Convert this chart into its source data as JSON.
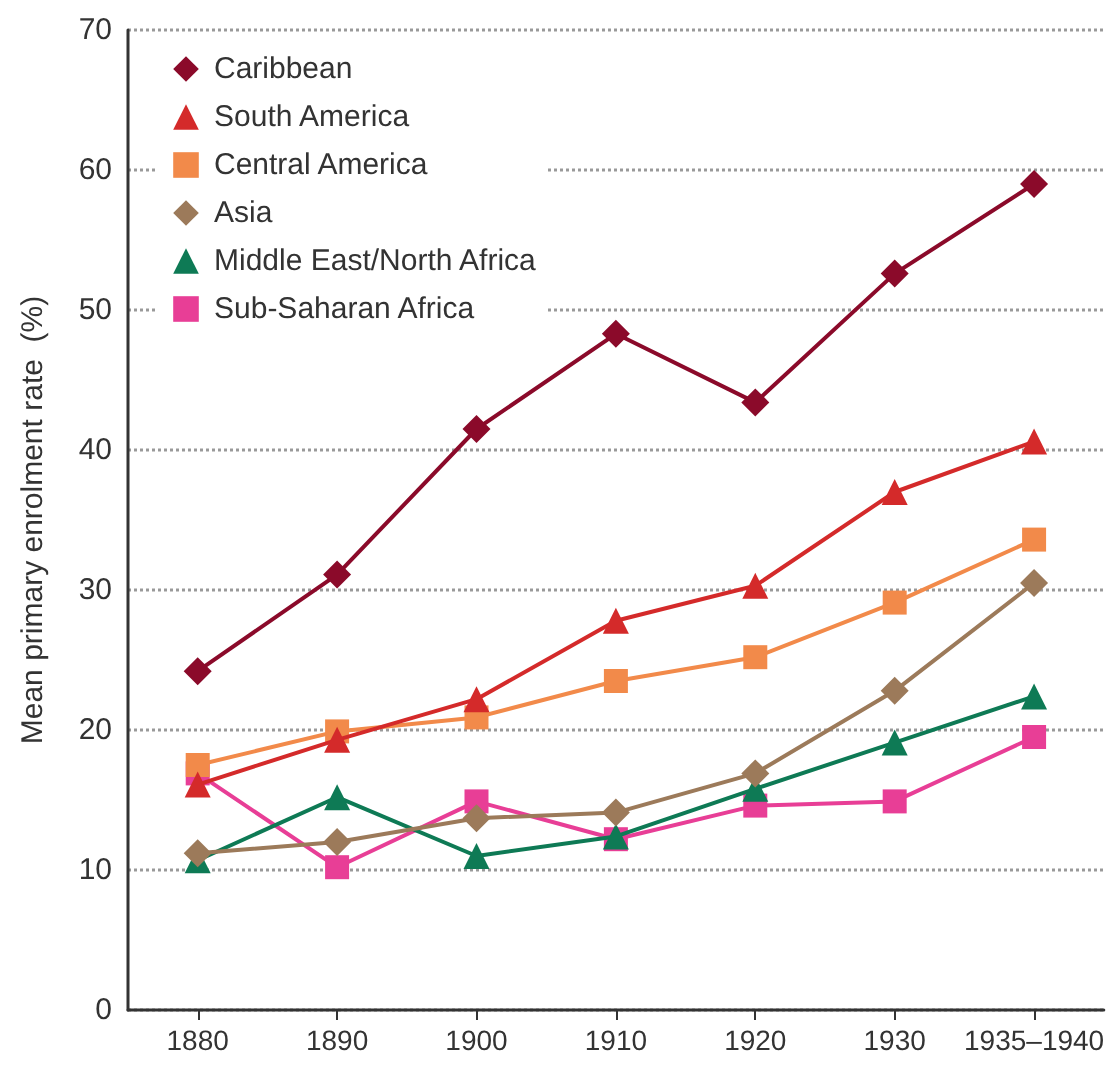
{
  "chart_data": {
    "type": "line",
    "ylabel": "Mean primary enrolment rate  (%)",
    "categories": [
      "1880",
      "1890",
      "1900",
      "1910",
      "1920",
      "1930",
      "1935–1940"
    ],
    "series": [
      {
        "name": "Caribbean",
        "color": "#8b0a2a",
        "marker": "diamond",
        "values": [
          24.2,
          31.1,
          41.5,
          48.3,
          43.4,
          52.6,
          59.0
        ]
      },
      {
        "name": "South America",
        "color": "#d42a2a",
        "marker": "triangle",
        "values": [
          16.1,
          19.3,
          22.2,
          27.8,
          30.3,
          37.0,
          40.6
        ]
      },
      {
        "name": "Central America",
        "color": "#f28a4a",
        "marker": "square",
        "values": [
          17.5,
          19.9,
          20.9,
          23.5,
          25.2,
          29.1,
          33.6
        ]
      },
      {
        "name": "Asia",
        "color": "#9c7a5a",
        "marker": "diamond",
        "values": [
          11.2,
          12.0,
          13.7,
          14.1,
          16.9,
          22.8,
          30.5
        ]
      },
      {
        "name": "Middle East/North Africa",
        "color": "#0e7a55",
        "marker": "triangle",
        "values": [
          10.7,
          15.2,
          11.0,
          12.4,
          15.8,
          19.1,
          22.4
        ]
      },
      {
        "name": "Sub-Saharan Africa",
        "color": "#e83e96",
        "marker": "square",
        "values": [
          16.9,
          10.2,
          14.9,
          12.2,
          14.6,
          14.9,
          19.5
        ]
      }
    ],
    "ylim": [
      0,
      70
    ],
    "yticks": [
      0,
      10,
      20,
      30,
      40,
      50,
      60,
      70
    ],
    "grid": "y",
    "legend": "top left"
  }
}
